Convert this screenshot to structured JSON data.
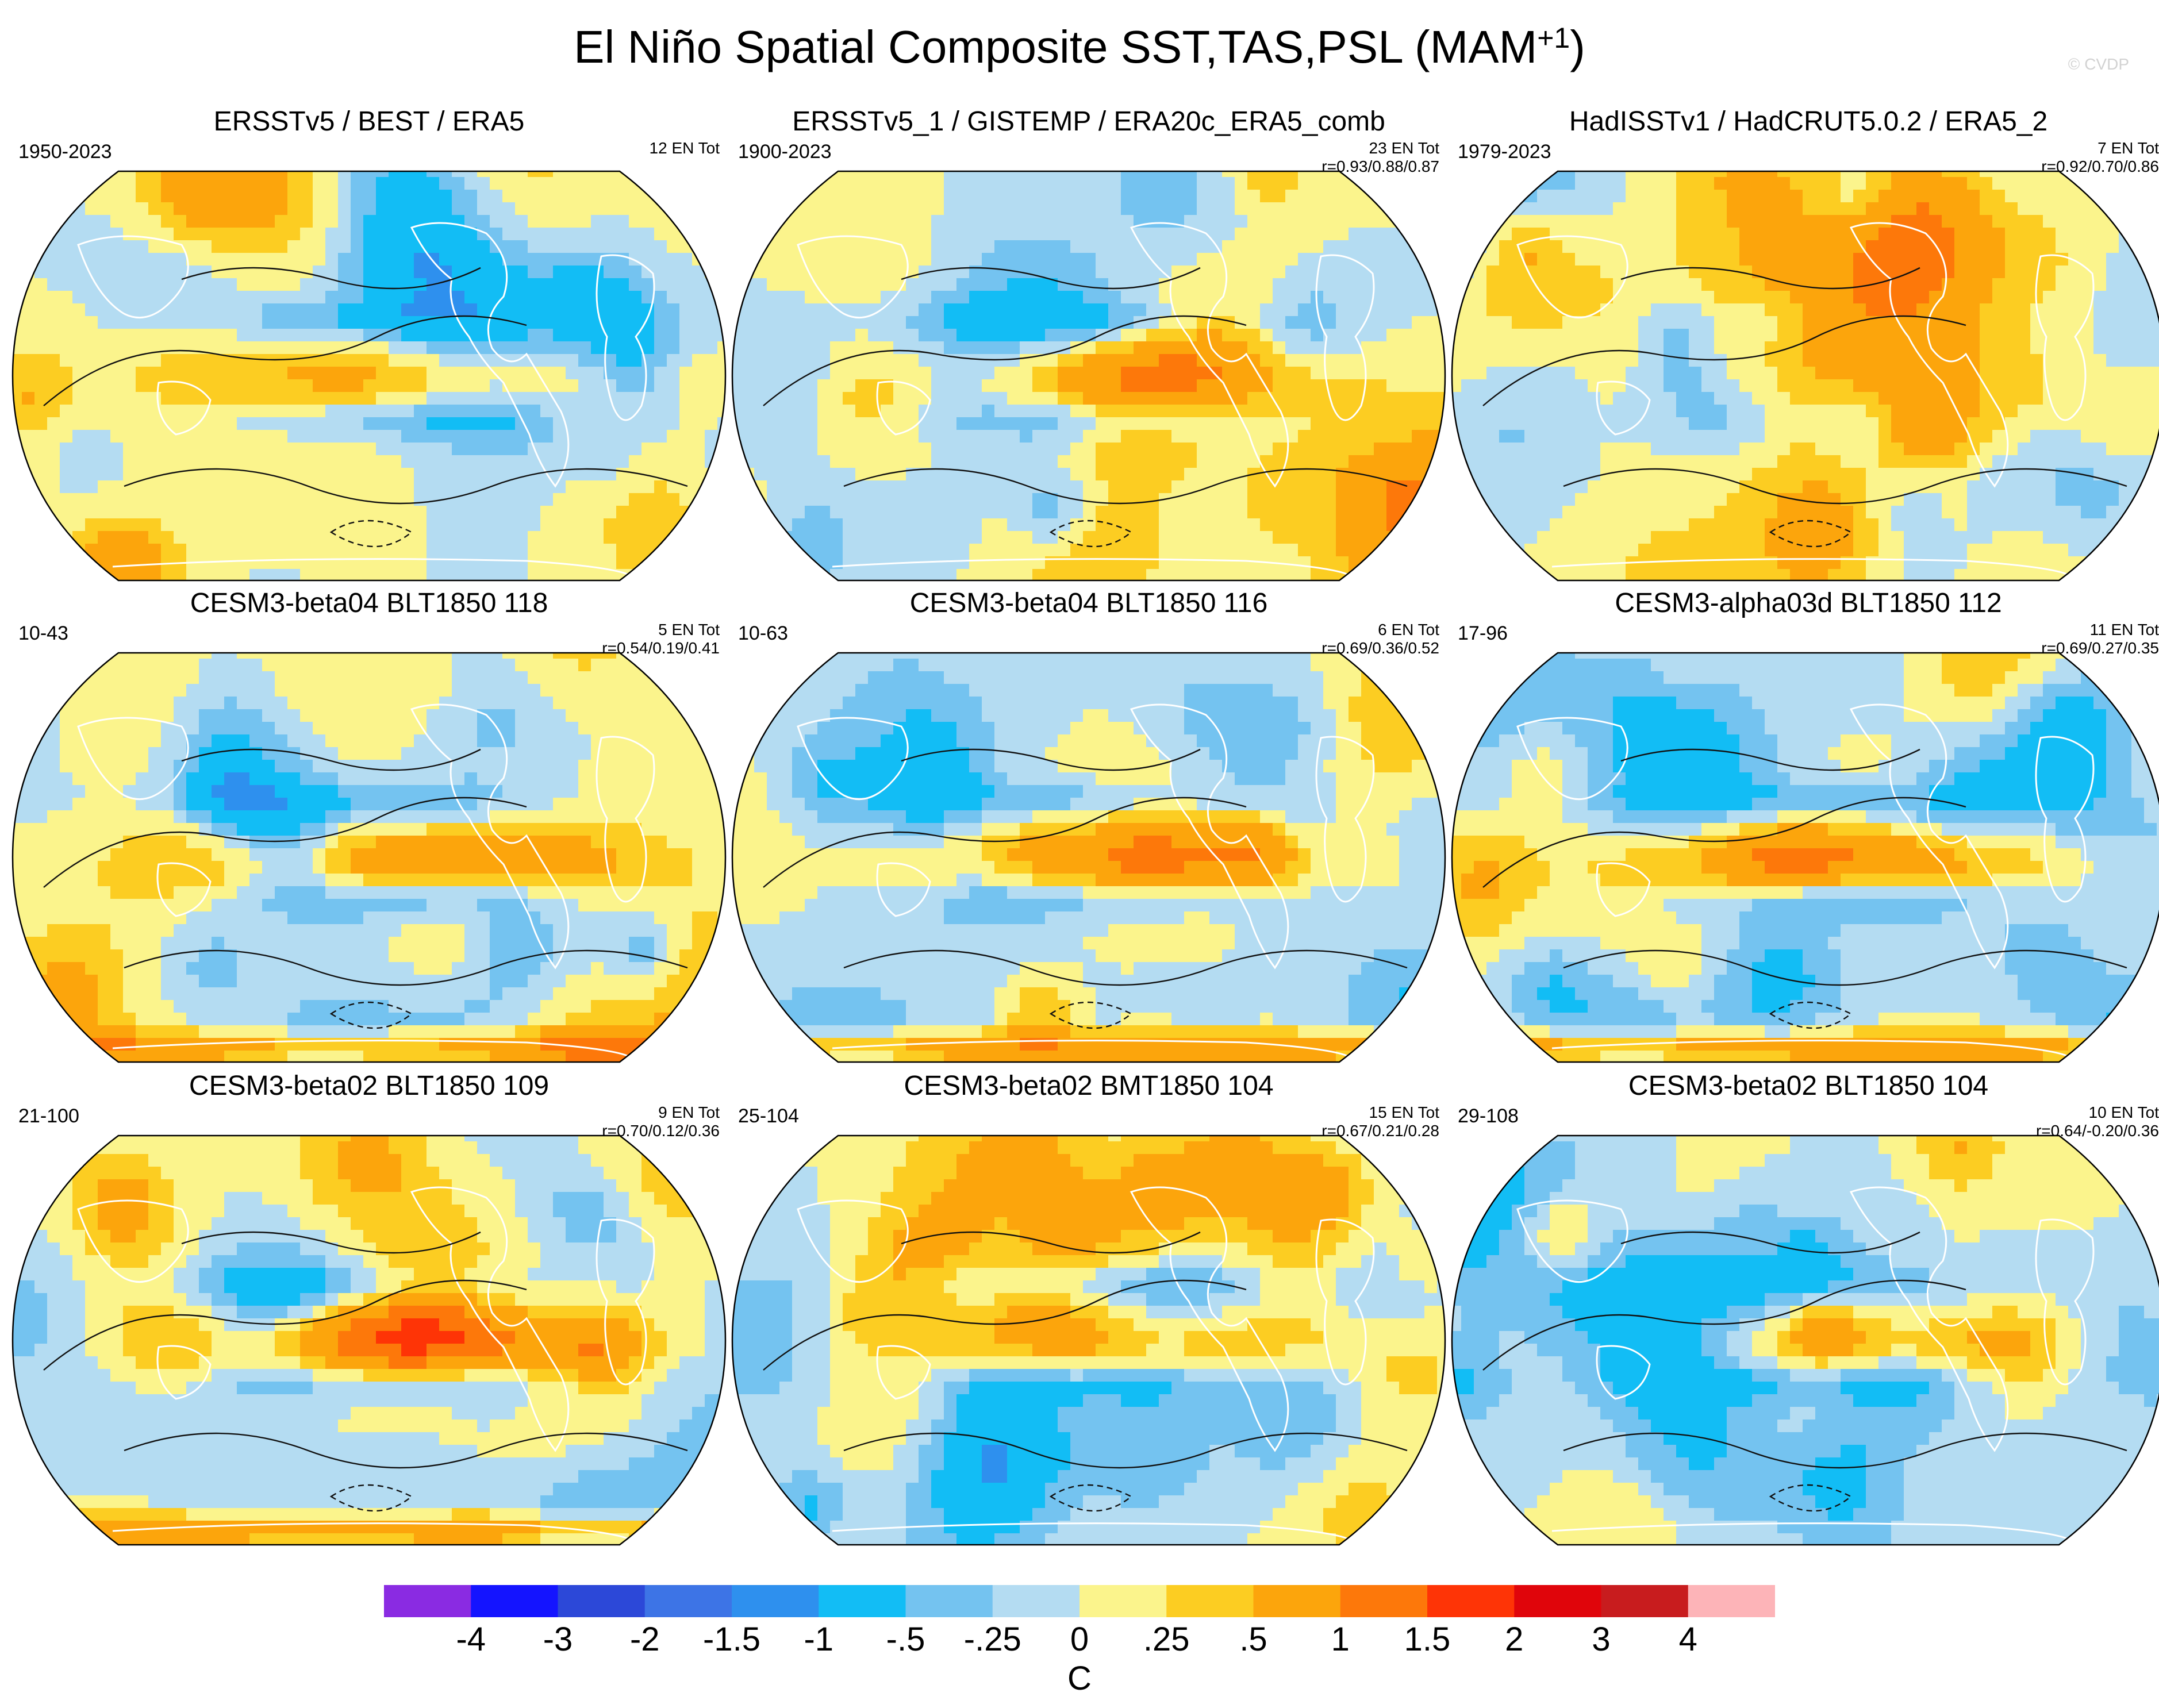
{
  "header": {
    "title_main": "El Niño Spatial Composite SST,TAS,PSL (MAM",
    "title_sup": "+1",
    "title_end": ")",
    "watermark": "© CVDP"
  },
  "panels": [
    {
      "title": "ERSSTv5 / BEST / ERA5",
      "years": "1950-2023",
      "en_tot": "12 EN Tot",
      "corr": "",
      "pattern": "observed_a"
    },
    {
      "title": "ERSSTv5_1 / GISTEMP / ERA20c_ERA5_comb",
      "years": "1900-2023",
      "en_tot": "23 EN Tot",
      "corr": "r=0.93/0.88/0.87",
      "pattern": "observed_b"
    },
    {
      "title": "HadISSTv1 / HadCRUT5.0.2 / ERA5_2",
      "years": "1979-2023",
      "en_tot": "7 EN Tot",
      "corr": "r=0.92/0.70/0.86",
      "pattern": "observed_c"
    },
    {
      "title": "CESM3-beta04 BLT1850 118",
      "years": "10-43",
      "en_tot": "5 EN Tot",
      "corr": "r=0.54/0.19/0.41",
      "pattern": "model_strong"
    },
    {
      "title": "CESM3-beta04 BLT1850 116",
      "years": "10-63",
      "en_tot": "6 EN Tot",
      "corr": "r=0.69/0.36/0.52",
      "pattern": "model_strong"
    },
    {
      "title": "CESM3-alpha03d BLT1850 112",
      "years": "17-96",
      "en_tot": "11 EN Tot",
      "corr": "r=0.69/0.27/0.35",
      "pattern": "model_warm"
    },
    {
      "title": "CESM3-beta02 BLT1850 109",
      "years": "21-100",
      "en_tot": "9 EN Tot",
      "corr": "r=0.70/0.12/0.36",
      "pattern": "model_warm"
    },
    {
      "title": "CESM3-beta02 BMT1850 104",
      "years": "25-104",
      "en_tot": "15 EN Tot",
      "corr": "r=0.67/0.21/0.28",
      "pattern": "model_mild"
    },
    {
      "title": "CESM3-beta02 BLT1850 104",
      "years": "29-108",
      "en_tot": "10 EN Tot",
      "corr": "r=0.64/-0.20/0.36",
      "pattern": "model_mild"
    }
  ],
  "chart_data": {
    "type": "heatmap",
    "title": "El Niño Spatial Composite SST,TAS,PSL (MAM+1)",
    "projection": "Robinson (global)",
    "fields": [
      "SST",
      "TAS",
      "PSL (contours)"
    ],
    "colorbar": {
      "unit": "C",
      "levels": [
        "-4",
        "-3",
        "-2",
        "-1.5",
        "-1",
        "-.5",
        "-.25",
        "0",
        ".25",
        ".5",
        "1",
        "1.5",
        "2",
        "3",
        "4"
      ],
      "level_values": [
        -4,
        -3,
        -2,
        -1.5,
        -1,
        -0.5,
        -0.25,
        0,
        0.25,
        0.5,
        1,
        1.5,
        2,
        3,
        4
      ],
      "colors": [
        "#8a2be2",
        "#1414ff",
        "#2c48d8",
        "#3d74e6",
        "#2e90ee",
        "#12bdf5",
        "#74c3f0",
        "#b4dcf2",
        "#fbf48c",
        "#fccd22",
        "#fca50c",
        "#fd780a",
        "#fe3406",
        "#e0050b",
        "#c81c1e",
        "#fdb4b8"
      ]
    },
    "panels": [
      {
        "dataset": "ERSSTv5 / BEST / ERA5",
        "period": "1950-2023",
        "el_nino_events": 12,
        "pattern_r": null
      },
      {
        "dataset": "ERSSTv5_1 / GISTEMP / ERA20c_ERA5_comb",
        "period": "1900-2023",
        "el_nino_events": 23,
        "pattern_r": [
          0.93,
          0.88,
          0.87
        ]
      },
      {
        "dataset": "HadISSTv1 / HadCRUT5.0.2 / ERA5_2",
        "period": "1979-2023",
        "el_nino_events": 7,
        "pattern_r": [
          0.92,
          0.7,
          0.86
        ]
      },
      {
        "dataset": "CESM3-beta04 BLT1850 118",
        "period": "10-43",
        "el_nino_events": 5,
        "pattern_r": [
          0.54,
          0.19,
          0.41
        ]
      },
      {
        "dataset": "CESM3-beta04 BLT1850 116",
        "period": "10-63",
        "el_nino_events": 6,
        "pattern_r": [
          0.69,
          0.36,
          0.52
        ]
      },
      {
        "dataset": "CESM3-alpha03d BLT1850 112",
        "period": "17-96",
        "el_nino_events": 11,
        "pattern_r": [
          0.69,
          0.27,
          0.35
        ]
      },
      {
        "dataset": "CESM3-beta02 BLT1850 109",
        "period": "21-100",
        "el_nino_events": 9,
        "pattern_r": [
          0.7,
          0.12,
          0.36
        ]
      },
      {
        "dataset": "CESM3-beta02 BMT1850 104",
        "period": "25-104",
        "el_nino_events": 15,
        "pattern_r": [
          0.67,
          0.21,
          0.28
        ]
      },
      {
        "dataset": "CESM3-beta02 BLT1850 104",
        "period": "29-108",
        "el_nino_events": 10,
        "pattern_r": [
          0.64,
          -0.2,
          0.36
        ]
      }
    ]
  }
}
